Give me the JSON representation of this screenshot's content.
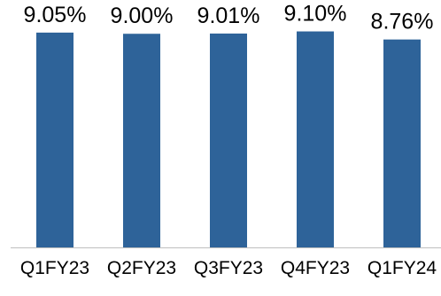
{
  "chart_data": {
    "type": "bar",
    "title": "",
    "xlabel": "",
    "ylabel": "",
    "categories": [
      "Q1FY23",
      "Q2FY23",
      "Q3FY23",
      "Q4FY23",
      "Q1FY24"
    ],
    "values": [
      9.05,
      9.0,
      9.01,
      9.1,
      8.76
    ],
    "data_labels": [
      "9.05%",
      "9.00%",
      "9.01%",
      "9.10%",
      "8.76%"
    ],
    "unit": "%",
    "ylim": [
      0,
      10.2
    ],
    "grid": false,
    "legend": "none",
    "colors": {
      "bar": "#2e6399",
      "axis": "#bfbfbf",
      "text": "#000000"
    }
  }
}
